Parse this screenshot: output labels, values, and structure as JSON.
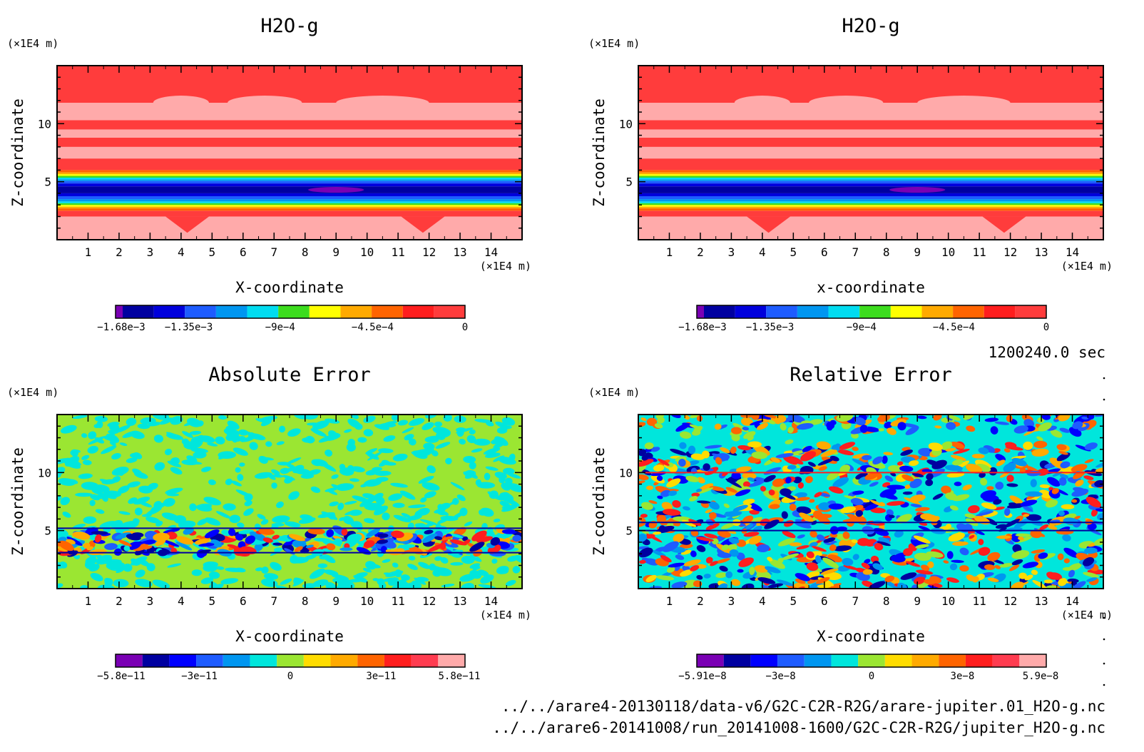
{
  "chart_data": [
    {
      "id": "h2o-g-1",
      "type": "heatmap",
      "title": "H2O-g",
      "xlabel": "X-coordinate",
      "ylabel": "Z-coordinate",
      "x_unit": "(×1E4 m)",
      "y_unit": "(×1E4 m)",
      "xlim": [
        0,
        15
      ],
      "ylim": [
        0,
        15
      ],
      "x_ticks": [
        "1",
        "2",
        "3",
        "4",
        "5",
        "6",
        "7",
        "8",
        "9",
        "10",
        "11",
        "12",
        "13",
        "14"
      ],
      "y_ticks": [
        "5",
        "10"
      ],
      "pattern": "bands",
      "colorbar": {
        "colors": [
          "#7a00b4",
          "#0000a0",
          "#0000dc",
          "#1e5cff",
          "#0096f0",
          "#00dcf0",
          "#3cdc1e",
          "#ffff00",
          "#ffaa00",
          "#ff6400",
          "#ff1e1e",
          "#ff3c3c"
        ],
        "ticks": [
          "−1.68e−3",
          "−1.35e−3",
          "−9e−4",
          "−4.5e−4",
          "0"
        ]
      }
    },
    {
      "id": "h2o-g-2",
      "type": "heatmap",
      "title": "H2O-g",
      "xlabel": "x-coordinate",
      "ylabel": "Z-coordinate",
      "x_unit": "(×1E4 m)",
      "y_unit": "(×1E4 m)",
      "xlim": [
        0,
        15
      ],
      "ylim": [
        0,
        15
      ],
      "x_ticks": [
        "1",
        "2",
        "3",
        "4",
        "5",
        "6",
        "7",
        "8",
        "9",
        "10",
        "11",
        "12",
        "13",
        "14"
      ],
      "y_ticks": [
        "5",
        "10"
      ],
      "pattern": "bands",
      "colorbar": {
        "colors": [
          "#7a00b4",
          "#0000a0",
          "#0000dc",
          "#1e5cff",
          "#0096f0",
          "#00dcf0",
          "#3cdc1e",
          "#ffff00",
          "#ffaa00",
          "#ff6400",
          "#ff1e1e",
          "#ff3c3c"
        ],
        "ticks": [
          "−1.68e−3",
          "−1.35e−3",
          "−9e−4",
          "−4.5e−4",
          "0"
        ]
      }
    },
    {
      "id": "absolute-error",
      "type": "heatmap",
      "title": "Absolute Error",
      "xlabel": "X-coordinate",
      "ylabel": "Z-coordinate",
      "x_unit": "(×1E4 m)",
      "y_unit": "(×1E4 m)",
      "xlim": [
        0,
        15
      ],
      "ylim": [
        0,
        15
      ],
      "x_ticks": [
        "1",
        "2",
        "3",
        "4",
        "5",
        "6",
        "7",
        "8",
        "9",
        "10",
        "11",
        "12",
        "13",
        "14"
      ],
      "y_ticks": [
        "5",
        "10"
      ],
      "pattern": "abs-noise",
      "colorbar": {
        "colors": [
          "#7a00b4",
          "#0000a0",
          "#0000ff",
          "#1e5cff",
          "#0096f0",
          "#00e6dc",
          "#9be632",
          "#ffdc00",
          "#ffaa00",
          "#ff6400",
          "#ff1e1e",
          "#ff3c50",
          "#ffaaaa"
        ],
        "ticks": [
          "−5.8e−11",
          "−3e−11",
          "0",
          "3e−11",
          "5.8e−11"
        ]
      }
    },
    {
      "id": "relative-error",
      "type": "heatmap",
      "title": "Relative Error",
      "xlabel": "X-coordinate",
      "ylabel": "Z-coordinate",
      "x_unit": "(×1E4 m)",
      "y_unit": "(×1E4 m)",
      "xlim": [
        0,
        15
      ],
      "ylim": [
        0,
        15
      ],
      "x_ticks": [
        "1",
        "2",
        "3",
        "4",
        "5",
        "6",
        "7",
        "8",
        "9",
        "10",
        "11",
        "12",
        "13",
        "14"
      ],
      "y_ticks": [
        "5",
        "10"
      ],
      "pattern": "rel-noise",
      "colorbar": {
        "colors": [
          "#7a00b4",
          "#0000a0",
          "#0000ff",
          "#1e5cff",
          "#0096f0",
          "#00e6dc",
          "#9be632",
          "#ffdc00",
          "#ffaa00",
          "#ff6400",
          "#ff1e1e",
          "#ff3c50",
          "#ffaaaa"
        ],
        "ticks": [
          "−5.91e−8",
          "−3e−8",
          "0",
          "3e−8",
          "5.9e−8"
        ]
      }
    }
  ],
  "time_label": "1200240.0 sec",
  "footer": {
    "line1": "../../arare4-20130118/data-v6/G2C-C2R-R2G/arare-jupiter.01_H2O-g.nc",
    "line2": "../../arare6-20141008/run_20141008-1600/G2C-C2R-R2G/jupiter_H2O-g.nc"
  }
}
